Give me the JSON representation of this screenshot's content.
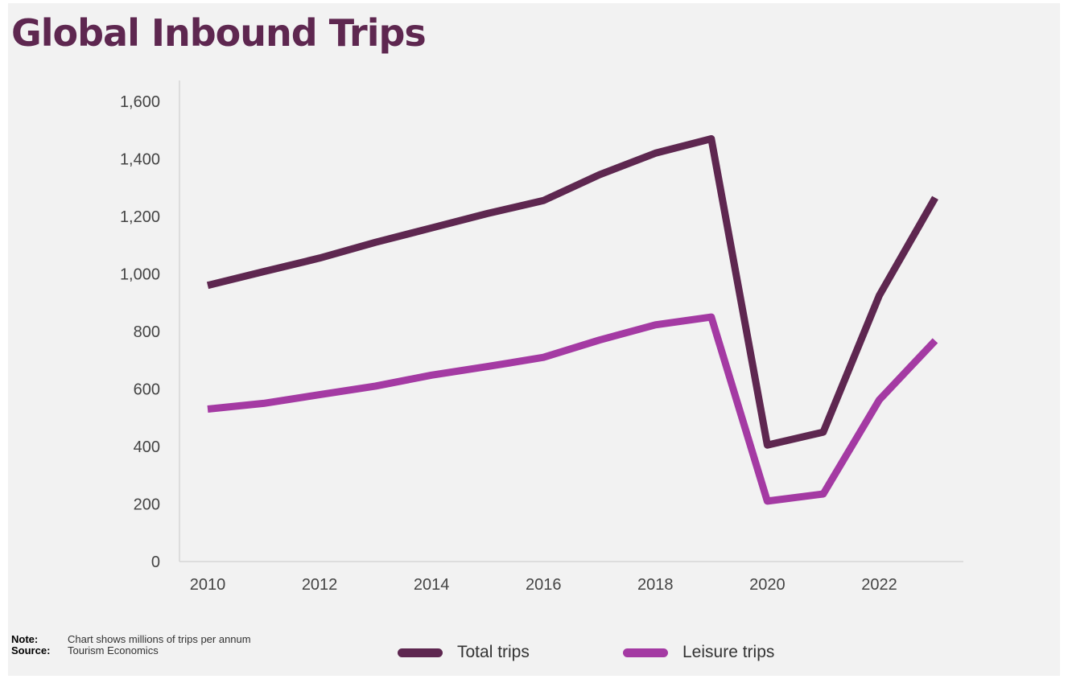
{
  "title": "Global Inbound Trips",
  "note_label": "Note:",
  "note_text": "Chart shows millions of trips per annum",
  "source_label": "Source:",
  "source_text": "Tourism Economics",
  "colors": {
    "title": "#5e2750",
    "total": "#5e2750",
    "leisure": "#a43aa3",
    "axis": "#d6d6d6"
  },
  "chart_data": {
    "type": "line",
    "title": "Global Inbound Trips",
    "xlabel": "",
    "ylabel": "",
    "x": [
      2010,
      2011,
      2012,
      2013,
      2014,
      2015,
      2016,
      2017,
      2018,
      2019,
      2020,
      2021,
      2022,
      2023
    ],
    "x_ticks": [
      "2010",
      "2012",
      "2014",
      "2016",
      "2018",
      "2020",
      "2022"
    ],
    "xlim": [
      2010,
      2023
    ],
    "y_ticks": [
      "0",
      "200",
      "400",
      "600",
      "800",
      "1,000",
      "1,200",
      "1,400",
      "1,600"
    ],
    "ylim": [
      0,
      1600
    ],
    "grid": false,
    "legend_position": "bottom",
    "series": [
      {
        "name": "Total trips",
        "color": "#5e2750",
        "values": [
          960,
          1008,
          1055,
          1110,
          1160,
          1210,
          1255,
          1345,
          1420,
          1470,
          405,
          450,
          925,
          1265
        ]
      },
      {
        "name": "Leisure trips",
        "color": "#a43aa3",
        "values": [
          530,
          550,
          580,
          610,
          648,
          678,
          710,
          770,
          823,
          850,
          210,
          235,
          562,
          768
        ]
      }
    ]
  }
}
